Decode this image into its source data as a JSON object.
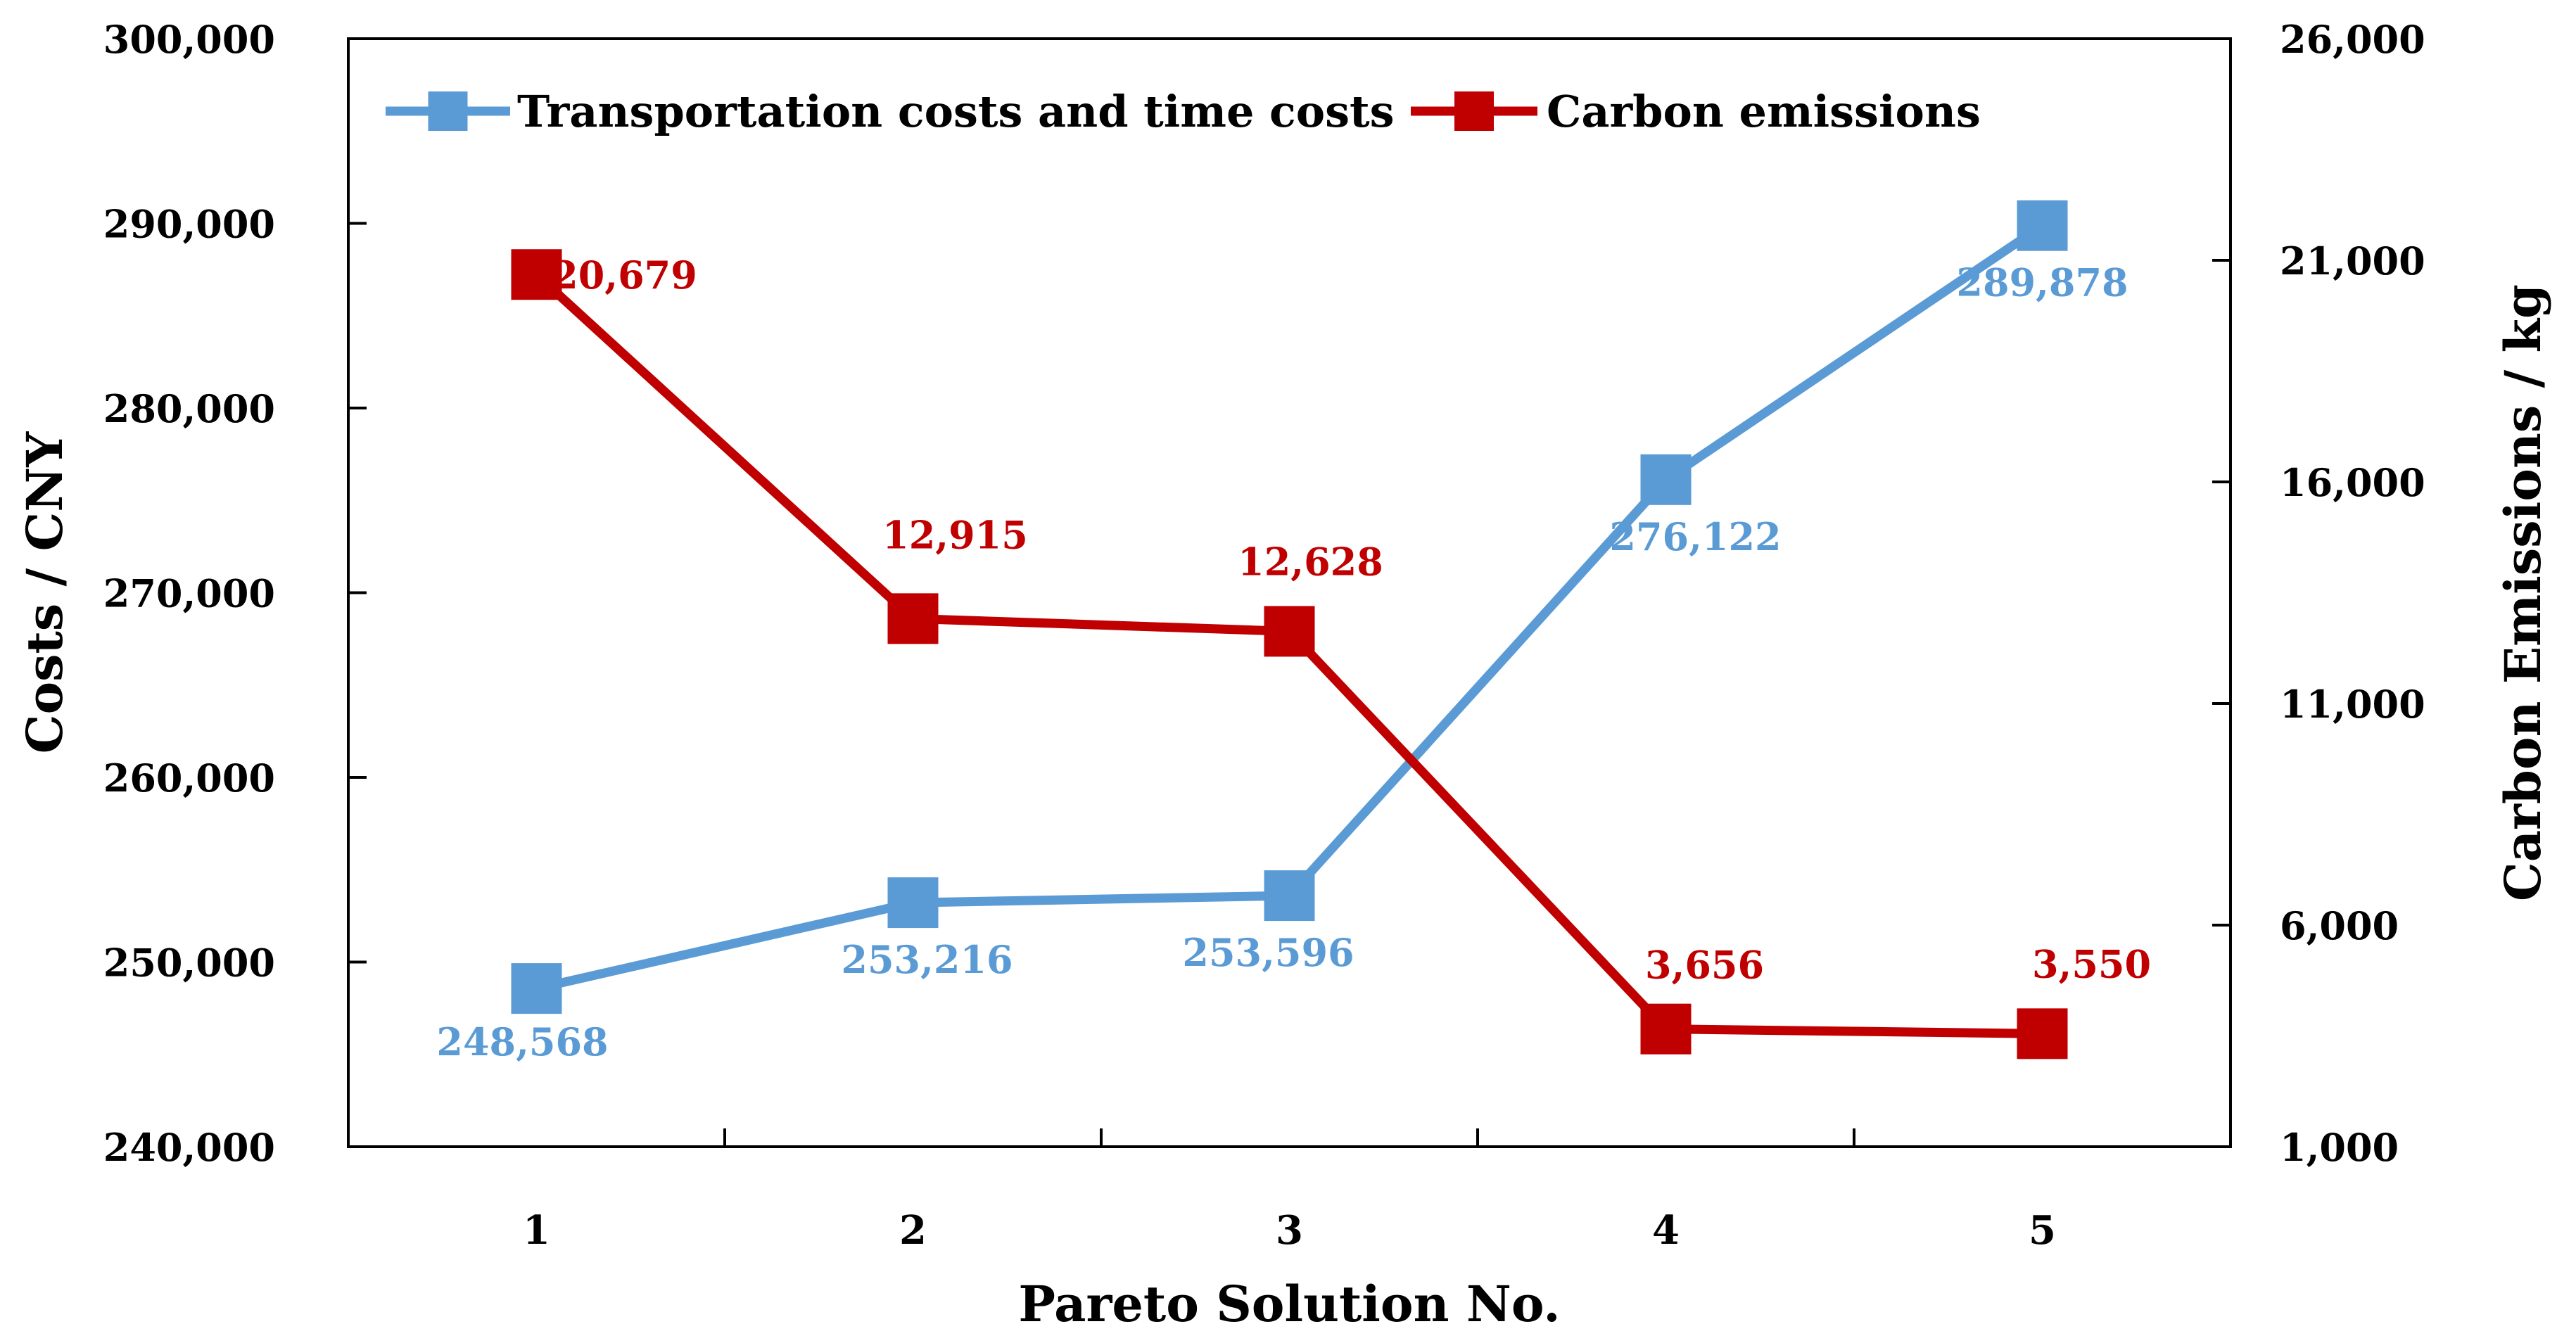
{
  "chart_data": {
    "type": "line",
    "title": "",
    "xlabel": "Pareto Solution No.",
    "ylabel": "Costs / CNY",
    "y2label": "Carbon Emissions / kg",
    "categories": [
      "1",
      "2",
      "3",
      "4",
      "5"
    ],
    "ylim": [
      240000,
      300000
    ],
    "y_ticks": [
      "240,000",
      "250,000",
      "260,000",
      "270,000",
      "280,000",
      "290,000",
      "300,000"
    ],
    "y2lim": [
      1000,
      26000
    ],
    "y2_ticks": [
      "1,000",
      "6,000",
      "11,000",
      "16,000",
      "21,000",
      "26,000"
    ],
    "legend_position": "top-left inside",
    "series": [
      {
        "name": "Transportation costs and time costs",
        "axis": "left",
        "color": "#5b9bd5",
        "values": [
          248568,
          253216,
          253596,
          276122,
          289878
        ],
        "labels": [
          "248,568",
          "253,216",
          "253,596",
          "276,122",
          "289,878"
        ]
      },
      {
        "name": "Carbon emissions",
        "axis": "right",
        "color": "#c00000",
        "values": [
          20679,
          12915,
          12628,
          3656,
          3550
        ],
        "labels": [
          "20,679",
          "12,915",
          "12,628",
          "3,656",
          "3,550"
        ]
      }
    ]
  }
}
